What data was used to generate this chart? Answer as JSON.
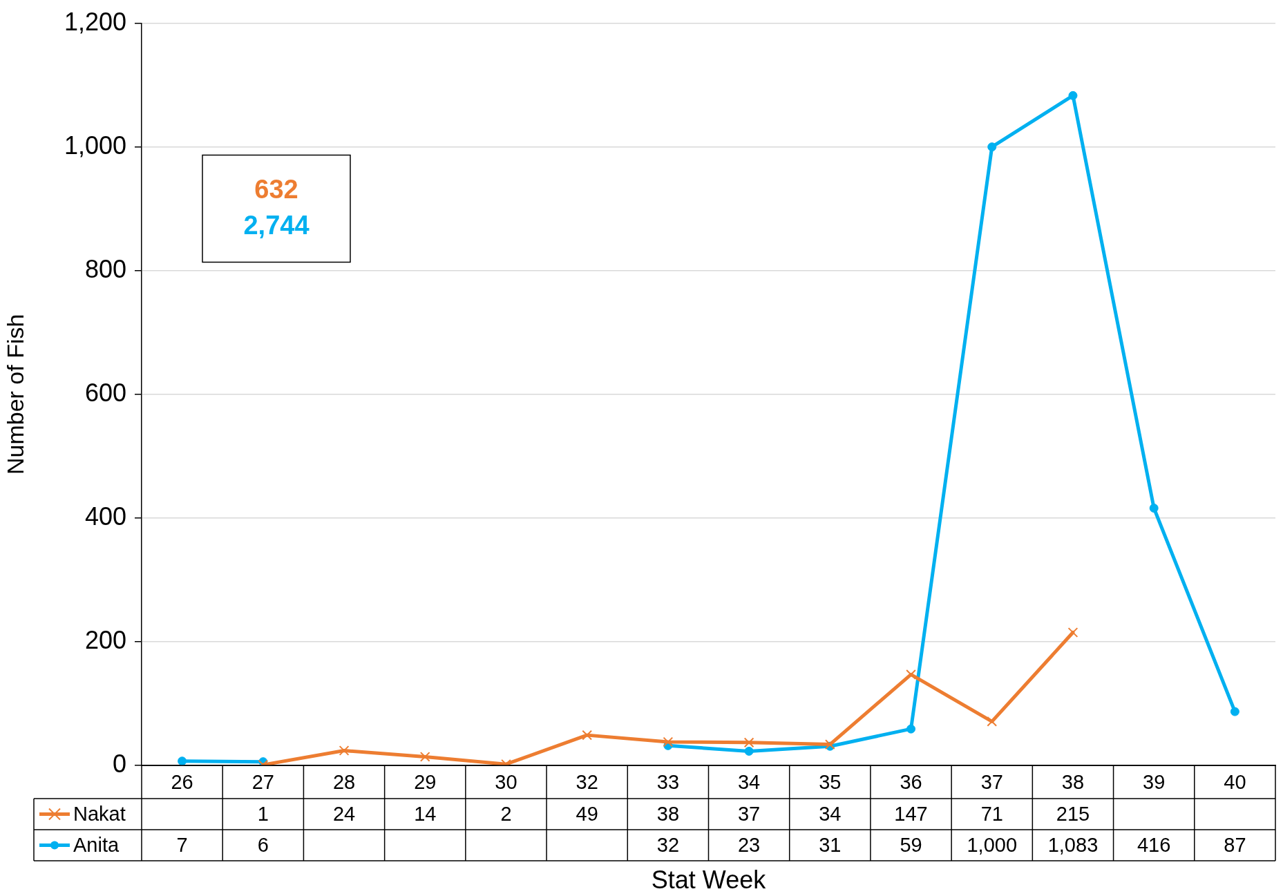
{
  "chart_data": {
    "type": "line",
    "xlabel": "Stat Week",
    "ylabel": "Number of Fish",
    "categories": [
      "26",
      "27",
      "28",
      "29",
      "30",
      "32",
      "33",
      "34",
      "35",
      "36",
      "37",
      "38",
      "39",
      "40"
    ],
    "series": [
      {
        "name": "Nakat",
        "color": "#ed7d31",
        "marker": "cross",
        "values": [
          null,
          1,
          24,
          14,
          2,
          49,
          38,
          37,
          34,
          147,
          71,
          215,
          null,
          null
        ],
        "value_labels": [
          null,
          "1",
          "24",
          "14",
          "2",
          "49",
          "38",
          "37",
          "34",
          "147",
          "71",
          "215",
          null,
          null
        ]
      },
      {
        "name": "Anita",
        "color": "#00b0f0",
        "marker": "circle",
        "values": [
          7,
          6,
          null,
          null,
          null,
          null,
          32,
          23,
          31,
          59,
          1000,
          1083,
          416,
          87
        ],
        "value_labels": [
          "7",
          "6",
          null,
          null,
          null,
          null,
          "32",
          "23",
          "31",
          "59",
          "1,000",
          "1,083",
          "416",
          "87"
        ]
      }
    ],
    "ylim": [
      0,
      1200
    ],
    "yticks": [
      0,
      200,
      400,
      600,
      800,
      {
        "value": 1000,
        "label": "1,000"
      },
      {
        "value": 1200,
        "label": "1,200"
      }
    ],
    "grid": "y",
    "legend": "bottom",
    "line_style": "solid",
    "annotations": [
      "632",
      "2,744"
    ]
  }
}
